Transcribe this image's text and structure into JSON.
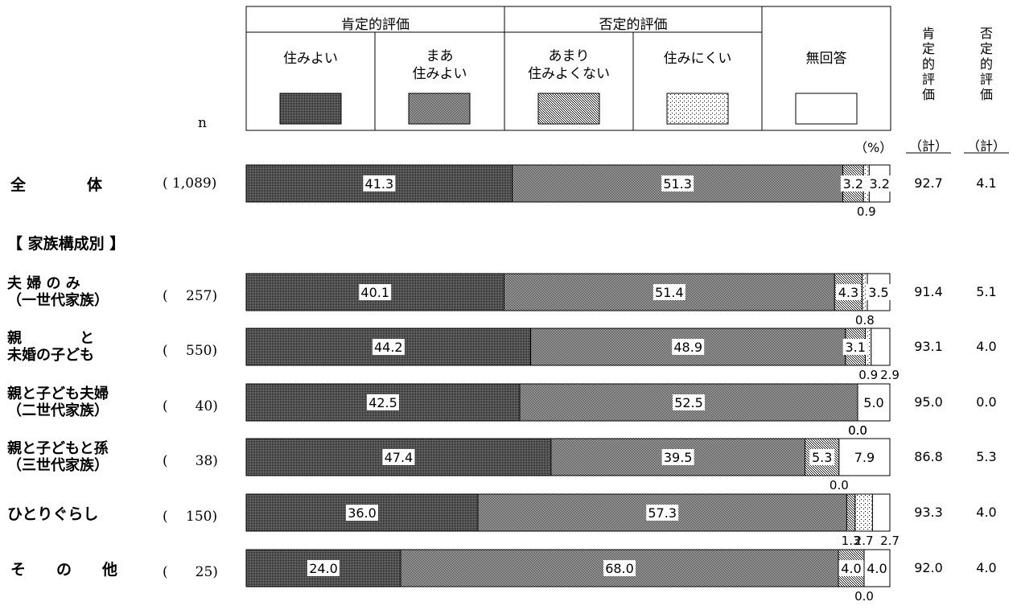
{
  "chart_data": {
    "type": "bar",
    "stacked": true,
    "orientation": "horizontal",
    "unit": "（%）",
    "n_header": "n",
    "group_headers": [
      {
        "label": "肯定的評価",
        "spans": [
          "住みよい",
          "まあ住みよい"
        ]
      },
      {
        "label": "否定的評価",
        "spans": [
          "あまり住みよくない",
          "住みにくい"
        ]
      }
    ],
    "legend": [
      {
        "name": "住みよい",
        "lines": [
          "住みよい"
        ],
        "color": "#3a3a3a",
        "pattern": "dense"
      },
      {
        "name": "まあ住みよい",
        "lines": [
          "まあ",
          "住みよい"
        ],
        "color": "#a8a8a8",
        "pattern": "medium"
      },
      {
        "name": "あまり住みよくない",
        "lines": [
          "あまり",
          "住みよくない"
        ],
        "color": "#d2d2d2",
        "pattern": "dots-dense"
      },
      {
        "name": "住みにくい",
        "lines": [
          "住みにくい"
        ],
        "color": "#ececec",
        "pattern": "dots-sparse"
      },
      {
        "name": "無回答",
        "lines": [
          "無回答"
        ],
        "color": "#ffffff",
        "pattern": "none"
      }
    ],
    "totals_headers": [
      {
        "chars": [
          "肯",
          "定",
          "的",
          "評",
          "価"
        ],
        "suffix": "（計）"
      },
      {
        "chars": [
          "否",
          "定",
          "的",
          "評",
          "価"
        ],
        "suffix": "（計）"
      }
    ],
    "section_label": "【 家族構成別 】",
    "rows": [
      {
        "label": [
          "全　　　　体"
        ],
        "n": "( 1,089)",
        "values": [
          41.3,
          51.3,
          3.2,
          0.9,
          3.2
        ],
        "labels": [
          "41.3",
          "51.3",
          "3.2",
          "0.9",
          "3.2"
        ],
        "positive_total": "92.7",
        "negative_total": "4.1"
      },
      {
        "label": [
          "夫 婦 の み",
          "（一世代家族）"
        ],
        "n": "(　 257)",
        "values": [
          40.1,
          51.4,
          4.3,
          0.8,
          3.5
        ],
        "labels": [
          "40.1",
          "51.4",
          "4.3",
          "0.8",
          "3.5"
        ],
        "positive_total": "91.4",
        "negative_total": "5.1"
      },
      {
        "label": [
          "親　　　　と",
          "未婚の子ども"
        ],
        "n": "(　 550)",
        "values": [
          44.2,
          48.9,
          3.1,
          0.9,
          2.9
        ],
        "labels": [
          "44.2",
          "48.9",
          "3.1",
          "0.9",
          "2.9"
        ],
        "positive_total": "93.1",
        "negative_total": "4.0"
      },
      {
        "label": [
          "親と子ども夫婦",
          "（二世代家族）"
        ],
        "n": "(　　40)",
        "values": [
          42.5,
          52.5,
          0.0,
          0.0,
          5.0
        ],
        "labels": [
          "42.5",
          "52.5",
          "0.0",
          "0.0",
          "5.0"
        ],
        "positive_total": "95.0",
        "negative_total": "0.0"
      },
      {
        "label": [
          "親と子どもと孫",
          "（三世代家族）"
        ],
        "n": "(　　38)",
        "values": [
          47.4,
          39.5,
          5.3,
          0.0,
          7.9
        ],
        "labels": [
          "47.4",
          "39.5",
          "5.3",
          "0.0",
          "7.9"
        ],
        "positive_total": "86.8",
        "negative_total": "5.3"
      },
      {
        "label": [
          "ひとりぐらし"
        ],
        "n": "(　 150)",
        "values": [
          36.0,
          57.3,
          1.3,
          2.7,
          2.7
        ],
        "labels": [
          "36.0",
          "57.3",
          "1.3",
          "2.7",
          "2.7"
        ],
        "positive_total": "93.3",
        "negative_total": "4.0"
      },
      {
        "label": [
          "そ　　の　　他"
        ],
        "n": "(　　25)",
        "values": [
          24.0,
          68.0,
          4.0,
          0.0,
          4.0
        ],
        "labels": [
          "24.0",
          "68.0",
          "4.0",
          "0.0",
          "4.0"
        ],
        "positive_total": "92.0",
        "negative_total": "4.0"
      }
    ]
  }
}
